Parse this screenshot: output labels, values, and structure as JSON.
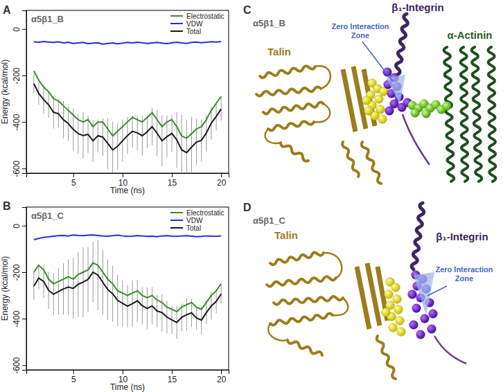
{
  "chart_data": [
    {
      "type": "line",
      "panel_label": "A",
      "title": "α5β1_B",
      "x_label": "Time (ns)",
      "y_label": "Energy (kcal/mol)",
      "x": [
        1,
        1.5,
        2,
        2.5,
        3,
        3.5,
        4,
        4.5,
        5,
        5.5,
        6,
        6.5,
        7,
        7.5,
        8,
        8.5,
        9,
        9.5,
        10,
        10.5,
        11,
        11.5,
        12,
        12.5,
        13,
        13.5,
        14,
        14.5,
        15,
        15.5,
        16,
        16.5,
        17,
        17.5,
        18,
        18.5,
        19,
        19.5,
        20
      ],
      "xlim": [
        0.24,
        20.76
      ],
      "xticks": [
        5,
        10,
        15,
        20
      ],
      "ylim": [
        -620,
        80
      ],
      "yticks": [
        -600,
        -400,
        -200,
        0
      ],
      "legend": "top-right",
      "series": [
        {
          "name": "Electrostatic",
          "color": "#3a8a2e",
          "values": [
            -180,
            -220,
            -250,
            -270,
            -300,
            -310,
            -330,
            -350,
            -370,
            -390,
            -400,
            -390,
            -420,
            -400,
            -400,
            -430,
            -460,
            -440,
            -420,
            -400,
            -380,
            -390,
            -400,
            -380,
            -360,
            -390,
            -420,
            -400,
            -390,
            -420,
            -460,
            -470,
            -450,
            -430,
            -420,
            -390,
            -350,
            -320,
            -290
          ]
        },
        {
          "name": "VDW",
          "color": "#2a2ae0",
          "values": [
            -55,
            -57,
            -54,
            -56,
            -58,
            -55,
            -60,
            -57,
            -62,
            -60,
            -58,
            -63,
            -61,
            -59,
            -65,
            -62,
            -60,
            -64,
            -61,
            -58,
            -60,
            -57,
            -59,
            -62,
            -60,
            -58,
            -61,
            -63,
            -59,
            -57,
            -60,
            -62,
            -58,
            -56,
            -59,
            -57,
            -55,
            -56,
            -54
          ]
        },
        {
          "name": "Total",
          "color": "#1a1a1a",
          "values": [
            -235,
            -277,
            -304,
            -326,
            -358,
            -365,
            -390,
            -407,
            -432,
            -450,
            -458,
            -453,
            -481,
            -459,
            -465,
            -492,
            -520,
            -504,
            -481,
            -458,
            -440,
            -447,
            -459,
            -442,
            -420,
            -448,
            -481,
            -463,
            -449,
            -477,
            -520,
            -532,
            -508,
            -486,
            -479,
            -447,
            -405,
            -376,
            -344
          ],
          "errors": [
            40,
            50,
            60,
            55,
            70,
            60,
            80,
            75,
            90,
            85,
            100,
            80,
            90,
            70,
            80,
            110,
            120,
            100,
            90,
            80,
            70,
            75,
            85,
            70,
            80,
            100,
            110,
            90,
            80,
            120,
            150,
            140,
            130,
            100,
            90,
            80,
            70,
            60,
            50
          ]
        }
      ]
    },
    {
      "type": "line",
      "panel_label": "B",
      "title": "α5β1_C",
      "x_label": "Time (ns)",
      "y_label": "Energy (kcal/mol)",
      "x": [
        1,
        1.5,
        2,
        2.5,
        3,
        3.5,
        4,
        4.5,
        5,
        5.5,
        6,
        6.5,
        7,
        7.5,
        8,
        8.5,
        9,
        9.5,
        10,
        10.5,
        11,
        11.5,
        12,
        12.5,
        13,
        13.5,
        14,
        14.5,
        15,
        15.5,
        16,
        16.5,
        17,
        17.5,
        18,
        18.5,
        19,
        19.5,
        20
      ],
      "xlim": [
        0.24,
        20.76
      ],
      "xticks": [
        5,
        10,
        15,
        20
      ],
      "ylim": [
        -620,
        80
      ],
      "yticks": [
        -600,
        -400,
        -200,
        0
      ],
      "legend": "top-right",
      "series": [
        {
          "name": "Electrostatic",
          "color": "#3a8a2e",
          "values": [
            -200,
            -170,
            -190,
            -230,
            -250,
            -240,
            -230,
            -220,
            -230,
            -210,
            -200,
            -190,
            -160,
            -170,
            -200,
            -230,
            -250,
            -280,
            -290,
            -300,
            -290,
            -280,
            -300,
            -310,
            -300,
            -320,
            -330,
            -350,
            -360,
            -370,
            -350,
            -340,
            -330,
            -350,
            -360,
            -330,
            -300,
            -280,
            -250
          ]
        },
        {
          "name": "VDW",
          "color": "#2a2ae0",
          "values": [
            -60,
            -55,
            -50,
            -48,
            -45,
            -43,
            -42,
            -44,
            -40,
            -42,
            -43,
            -41,
            -40,
            -42,
            -44,
            -45,
            -43,
            -41,
            -44,
            -46,
            -45,
            -43,
            -44,
            -46,
            -45,
            -47,
            -44,
            -43,
            -45,
            -46,
            -44,
            -43,
            -45,
            -47,
            -46,
            -44,
            -45,
            -46,
            -44
          ]
        },
        {
          "name": "Total",
          "color": "#1a1a1a",
          "values": [
            -260,
            -225,
            -240,
            -278,
            -295,
            -283,
            -272,
            -264,
            -270,
            -252,
            -243,
            -231,
            -200,
            -212,
            -244,
            -275,
            -293,
            -321,
            -334,
            -346,
            -335,
            -323,
            -344,
            -356,
            -345,
            -367,
            -374,
            -393,
            -405,
            -416,
            -394,
            -383,
            -375,
            -397,
            -406,
            -374,
            -345,
            -326,
            -294
          ],
          "errors": [
            60,
            50,
            70,
            80,
            90,
            100,
            110,
            120,
            130,
            140,
            150,
            140,
            130,
            150,
            140,
            130,
            120,
            110,
            100,
            90,
            100,
            90,
            80,
            90,
            80,
            70,
            80,
            70,
            60,
            70,
            60,
            70,
            60,
            50,
            60,
            50,
            60,
            50,
            40
          ]
        }
      ]
    }
  ],
  "structures": [
    {
      "panel_label": "C",
      "title": "α5β1_B",
      "labels": [
        "Talin",
        "β₁-Integrin",
        "α-Actinin"
      ],
      "annotation": "Zero Interaction Zone"
    },
    {
      "panel_label": "D",
      "title": "α5β1_C",
      "labels": [
        "Talin",
        "β₁-Integrin"
      ],
      "annotation": "Zero Interaction Zone"
    }
  ]
}
